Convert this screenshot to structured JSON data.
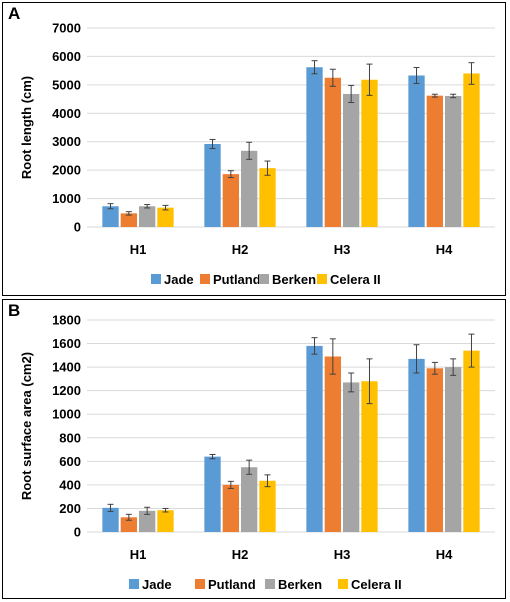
{
  "chart_data": [
    {
      "panel": "A",
      "type": "bar",
      "categories": [
        "H1",
        "H2",
        "H3",
        "H4"
      ],
      "ylabel": "Root length (cm)",
      "ylim": [
        0,
        7000
      ],
      "yticks": [
        0,
        1000,
        2000,
        3000,
        4000,
        5000,
        6000,
        7000
      ],
      "grid": true,
      "legend": "bottom",
      "series": [
        {
          "name": "Jade",
          "color": "#5B9BD5",
          "values": [
            730,
            2920,
            5620,
            5330
          ],
          "errors": [
            90,
            160,
            230,
            280
          ]
        },
        {
          "name": "Putland",
          "color": "#ED7D31",
          "values": [
            480,
            1860,
            5250,
            4620
          ],
          "errors": [
            60,
            120,
            300,
            50
          ]
        },
        {
          "name": "Berken",
          "color": "#A5A5A5",
          "values": [
            730,
            2680,
            4680,
            4610
          ],
          "errors": [
            60,
            300,
            300,
            60
          ]
        },
        {
          "name": "Celera II",
          "color": "#FFC000",
          "values": [
            680,
            2070,
            5180,
            5400
          ],
          "errors": [
            80,
            250,
            550,
            380
          ]
        }
      ]
    },
    {
      "panel": "B",
      "type": "bar",
      "categories": [
        "H1",
        "H2",
        "H3",
        "H4"
      ],
      "ylabel": "Root surface area (cm2)",
      "ylim": [
        0,
        1800
      ],
      "yticks": [
        0,
        200,
        400,
        600,
        800,
        1000,
        1200,
        1400,
        1600,
        1800
      ],
      "grid": true,
      "legend": "bottom",
      "series": [
        {
          "name": "Jade",
          "color": "#5B9BD5",
          "values": [
            205,
            640,
            1580,
            1470
          ],
          "errors": [
            30,
            18,
            70,
            120
          ]
        },
        {
          "name": "Putland",
          "color": "#ED7D31",
          "values": [
            125,
            400,
            1490,
            1390
          ],
          "errors": [
            25,
            30,
            150,
            50
          ]
        },
        {
          "name": "Berken",
          "color": "#A5A5A5",
          "values": [
            180,
            550,
            1270,
            1400
          ],
          "errors": [
            30,
            60,
            80,
            70
          ]
        },
        {
          "name": "Celera II",
          "color": "#FFC000",
          "values": [
            185,
            435,
            1280,
            1540
          ],
          "errors": [
            15,
            50,
            190,
            140
          ]
        }
      ]
    }
  ]
}
